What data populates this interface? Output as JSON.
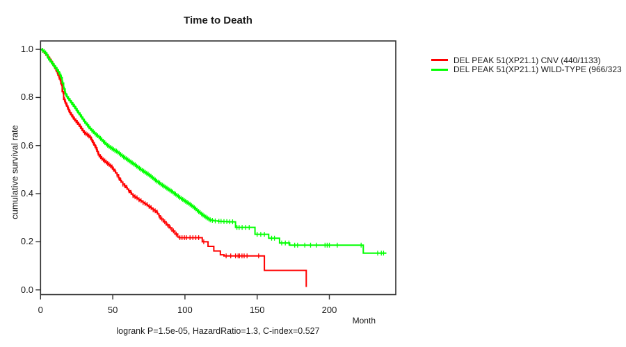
{
  "chart_data": {
    "type": "line",
    "subtype": "kaplan-meier-step-survival",
    "title": "Time to Death",
    "xlabel": "Month",
    "ylabel": "cumulative survival rate",
    "footnote": "logrank P=1.5e-05, HazardRatio=1.3, C-index=0.527",
    "x_ticks": [
      0,
      50,
      100,
      150,
      200
    ],
    "y_ticks": [
      0.0,
      0.2,
      0.4,
      0.6,
      0.8,
      1.0
    ],
    "xlim": [
      0,
      246
    ],
    "ylim": [
      -0.0196,
      1.0349
    ],
    "grid": false,
    "legend_position": "right-outside",
    "series": [
      {
        "name": "DEL PEAK 51(XP21.1) CNV (440/1133)",
        "color": "#ff0000",
        "points": [
          [
            0,
            1.0
          ],
          [
            1,
            0.996
          ],
          [
            2,
            0.99
          ],
          [
            3,
            0.983
          ],
          [
            4,
            0.976
          ],
          [
            5,
            0.968
          ],
          [
            6,
            0.959
          ],
          [
            7,
            0.95
          ],
          [
            8,
            0.941
          ],
          [
            9,
            0.931
          ],
          [
            10,
            0.92
          ],
          [
            11,
            0.907
          ],
          [
            12,
            0.893
          ],
          [
            13,
            0.877
          ],
          [
            14,
            0.857
          ],
          [
            15,
            0.824
          ],
          [
            16,
            0.792
          ],
          [
            17,
            0.777
          ],
          [
            18,
            0.764
          ],
          [
            19,
            0.75
          ],
          [
            20,
            0.737
          ],
          [
            21,
            0.728
          ],
          [
            22,
            0.719
          ],
          [
            23,
            0.71
          ],
          [
            24,
            0.703
          ],
          [
            25,
            0.696
          ],
          [
            26,
            0.689
          ],
          [
            27,
            0.68
          ],
          [
            28,
            0.671
          ],
          [
            29,
            0.662
          ],
          [
            30,
            0.654
          ],
          [
            31,
            0.649
          ],
          [
            32,
            0.645
          ],
          [
            33,
            0.64
          ],
          [
            34,
            0.635
          ],
          [
            35,
            0.624
          ],
          [
            36,
            0.613
          ],
          [
            37,
            0.602
          ],
          [
            38,
            0.591
          ],
          [
            39,
            0.576
          ],
          [
            40,
            0.561
          ],
          [
            41,
            0.554
          ],
          [
            42,
            0.547
          ],
          [
            43,
            0.541
          ],
          [
            44,
            0.536
          ],
          [
            45,
            0.531
          ],
          [
            46,
            0.526
          ],
          [
            47,
            0.521
          ],
          [
            48,
            0.516
          ],
          [
            49,
            0.511
          ],
          [
            50,
            0.502
          ],
          [
            51,
            0.494
          ],
          [
            52,
            0.486
          ],
          [
            53,
            0.478
          ],
          [
            54,
            0.466
          ],
          [
            55,
            0.455
          ],
          [
            56,
            0.448
          ],
          [
            57,
            0.44
          ],
          [
            58,
            0.433
          ],
          [
            59,
            0.426
          ],
          [
            60,
            0.419
          ],
          [
            61,
            0.412
          ],
          [
            62,
            0.405
          ],
          [
            63,
            0.398
          ],
          [
            64,
            0.392
          ],
          [
            65,
            0.387
          ],
          [
            66,
            0.383
          ],
          [
            67,
            0.379
          ],
          [
            68,
            0.375
          ],
          [
            69,
            0.371
          ],
          [
            70,
            0.367
          ],
          [
            71,
            0.363
          ],
          [
            72,
            0.359
          ],
          [
            73,
            0.355
          ],
          [
            74,
            0.351
          ],
          [
            75,
            0.347
          ],
          [
            76,
            0.342
          ],
          [
            77,
            0.338
          ],
          [
            78,
            0.333
          ],
          [
            79,
            0.329
          ],
          [
            80,
            0.323
          ],
          [
            81,
            0.316
          ],
          [
            82,
            0.308
          ],
          [
            83,
            0.295
          ],
          [
            85,
            0.283
          ],
          [
            87,
            0.27
          ],
          [
            89,
            0.258
          ],
          [
            91,
            0.245
          ],
          [
            93,
            0.232
          ],
          [
            95,
            0.22
          ],
          [
            96,
            0.217
          ],
          [
            112,
            0.2
          ],
          [
            116,
            0.181
          ],
          [
            120,
            0.162
          ],
          [
            124.5,
            0.146
          ],
          [
            127,
            0.141
          ],
          [
            155,
            0.081
          ],
          [
            184,
            0.012
          ]
        ],
        "censor_times": [
          1.5,
          2.5,
          3.5,
          4.5,
          5.5,
          6.5,
          7.5,
          8.5,
          9.5,
          10.5,
          11.5,
          12.5,
          13.5,
          14.5,
          15.5,
          16.5,
          17.5,
          18.5,
          19.5,
          20.5,
          21.5,
          22.5,
          23.5,
          24.5,
          25.5,
          26.5,
          27.5,
          28.5,
          29.5,
          30.5,
          31.5,
          32.5,
          33.5,
          34.5,
          35.5,
          36.5,
          37.5,
          38.5,
          39.5,
          40.5,
          41.5,
          42.5,
          43.5,
          44.5,
          45.5,
          46.5,
          47.5,
          48.5,
          49.5,
          50.5,
          51.7,
          53,
          54.3,
          55.6,
          57,
          58.4,
          59.8,
          61.2,
          62.6,
          64,
          65.4,
          66.8,
          68.2,
          69.6,
          71,
          72.4,
          73.8,
          75.2,
          76.6,
          78,
          79.4,
          80.8,
          82.2,
          84,
          86,
          88,
          90,
          92,
          94,
          96.5,
          98,
          99.6,
          101,
          103.5,
          105.5,
          107.5,
          109.5,
          113,
          128.5,
          131.7,
          135,
          136.8,
          137.8,
          139.5,
          141,
          143,
          151
        ]
      },
      {
        "name": "DEL PEAK 51(XP21.1) WILD-TYPE (966/323",
        "color": "#00ff00",
        "points": [
          [
            0,
            1.0
          ],
          [
            1,
            0.996
          ],
          [
            2,
            0.991
          ],
          [
            3,
            0.985
          ],
          [
            4,
            0.978
          ],
          [
            5,
            0.964
          ],
          [
            6,
            0.956
          ],
          [
            7,
            0.948
          ],
          [
            8,
            0.94
          ],
          [
            9,
            0.932
          ],
          [
            10,
            0.924
          ],
          [
            11,
            0.916
          ],
          [
            12,
            0.907
          ],
          [
            13,
            0.896
          ],
          [
            14,
            0.883
          ],
          [
            15,
            0.86
          ],
          [
            16,
            0.835
          ],
          [
            17,
            0.815
          ],
          [
            18,
            0.803
          ],
          [
            19,
            0.795
          ],
          [
            20,
            0.787
          ],
          [
            21,
            0.779
          ],
          [
            22,
            0.771
          ],
          [
            23,
            0.763
          ],
          [
            24,
            0.754
          ],
          [
            25,
            0.745
          ],
          [
            26,
            0.736
          ],
          [
            27,
            0.728
          ],
          [
            28,
            0.719
          ],
          [
            29,
            0.71
          ],
          [
            30,
            0.701
          ],
          [
            31,
            0.693
          ],
          [
            32,
            0.686
          ],
          [
            33,
            0.678
          ],
          [
            34,
            0.671
          ],
          [
            35,
            0.664
          ],
          [
            36,
            0.658
          ],
          [
            37,
            0.652
          ],
          [
            38,
            0.646
          ],
          [
            39,
            0.641
          ],
          [
            40,
            0.636
          ],
          [
            41,
            0.63
          ],
          [
            42,
            0.624
          ],
          [
            43,
            0.618
          ],
          [
            44,
            0.612
          ],
          [
            45,
            0.606
          ],
          [
            46,
            0.601
          ],
          [
            47,
            0.596
          ],
          [
            48,
            0.592
          ],
          [
            49,
            0.588
          ],
          [
            50,
            0.584
          ],
          [
            51,
            0.58
          ],
          [
            52,
            0.577
          ],
          [
            53,
            0.573
          ],
          [
            54,
            0.568
          ],
          [
            55,
            0.563
          ],
          [
            56,
            0.558
          ],
          [
            57,
            0.553
          ],
          [
            58,
            0.549
          ],
          [
            59,
            0.545
          ],
          [
            60,
            0.541
          ],
          [
            61,
            0.536
          ],
          [
            62,
            0.532
          ],
          [
            63,
            0.528
          ],
          [
            64,
            0.524
          ],
          [
            65,
            0.52
          ],
          [
            66,
            0.515
          ],
          [
            67,
            0.51
          ],
          [
            68,
            0.506
          ],
          [
            69,
            0.501
          ],
          [
            70,
            0.497
          ],
          [
            71,
            0.493
          ],
          [
            72,
            0.489
          ],
          [
            73,
            0.485
          ],
          [
            74,
            0.481
          ],
          [
            75,
            0.477
          ],
          [
            76,
            0.472
          ],
          [
            77,
            0.467
          ],
          [
            78,
            0.462
          ],
          [
            79,
            0.457
          ],
          [
            80,
            0.452
          ],
          [
            81,
            0.448
          ],
          [
            82,
            0.444
          ],
          [
            83,
            0.439
          ],
          [
            84,
            0.435
          ],
          [
            85,
            0.431
          ],
          [
            86,
            0.427
          ],
          [
            87,
            0.423
          ],
          [
            88,
            0.419
          ],
          [
            89,
            0.415
          ],
          [
            90,
            0.411
          ],
          [
            91,
            0.407
          ],
          [
            92,
            0.402
          ],
          [
            93,
            0.398
          ],
          [
            94,
            0.393
          ],
          [
            95,
            0.389
          ],
          [
            96,
            0.384
          ],
          [
            97,
            0.38
          ],
          [
            98,
            0.376
          ],
          [
            99,
            0.372
          ],
          [
            100,
            0.368
          ],
          [
            101,
            0.364
          ],
          [
            102,
            0.36
          ],
          [
            103,
            0.356
          ],
          [
            104,
            0.351
          ],
          [
            105,
            0.347
          ],
          [
            106,
            0.342
          ],
          [
            107,
            0.337
          ],
          [
            108,
            0.331
          ],
          [
            109,
            0.326
          ],
          [
            110,
            0.321
          ],
          [
            111,
            0.316
          ],
          [
            112,
            0.311
          ],
          [
            113,
            0.307
          ],
          [
            114,
            0.303
          ],
          [
            115,
            0.299
          ],
          [
            116,
            0.295
          ],
          [
            117,
            0.291
          ],
          [
            118,
            0.289
          ],
          [
            120,
            0.287
          ],
          [
            123,
            0.285
          ],
          [
            126,
            0.284
          ],
          [
            130,
            0.283
          ],
          [
            135,
            0.26
          ],
          [
            148.5,
            0.231
          ],
          [
            158,
            0.215
          ],
          [
            165.5,
            0.195
          ],
          [
            172.5,
            0.186
          ],
          [
            223.5,
            0.153
          ],
          [
            239.5,
            0.153
          ]
        ],
        "censor_times": [
          1.5,
          2.5,
          3.5,
          4.5,
          5.5,
          6.5,
          7.5,
          8.5,
          9.5,
          10.5,
          11.5,
          12.5,
          13.5,
          14.5,
          15.5,
          16.5,
          17.5,
          18.5,
          19.5,
          20.5,
          21.5,
          22.5,
          23.5,
          24.5,
          25.5,
          26.5,
          27.5,
          28.5,
          29.5,
          30.5,
          31.5,
          32.5,
          33.5,
          34.5,
          35.5,
          36.5,
          37.5,
          38.5,
          39.5,
          40.5,
          41.5,
          42.5,
          43.5,
          44.5,
          45.5,
          46.5,
          47.5,
          48.5,
          49.5,
          50.5,
          51.5,
          52.5,
          53.5,
          54.5,
          55.5,
          56.5,
          57.5,
          58.5,
          59.5,
          60.5,
          61.5,
          62.5,
          63.5,
          64.5,
          65.5,
          66.5,
          67.5,
          68.5,
          69.5,
          70.5,
          71.5,
          72.5,
          73.5,
          74.5,
          75.5,
          76.5,
          77.5,
          78.5,
          79.5,
          80.5,
          81.5,
          82.5,
          83.5,
          84.5,
          85.5,
          86.5,
          87.5,
          88.5,
          89.5,
          90.5,
          91.5,
          92.5,
          93.5,
          94.5,
          95.5,
          96.5,
          97.5,
          98.5,
          99.5,
          100.5,
          101.5,
          102.5,
          103.5,
          104.5,
          105.5,
          106.5,
          107.5,
          108.5,
          109.5,
          110.5,
          111.5,
          112.5,
          113.5,
          114.5,
          115.5,
          116.5,
          117.5,
          119,
          121,
          123.5,
          125,
          127,
          129,
          131,
          133,
          136,
          137.5,
          139.6,
          142,
          144.5,
          150,
          152.5,
          155,
          160,
          162,
          167,
          169.5,
          172,
          176,
          178,
          183,
          187,
          191,
          197,
          198.5,
          200,
          205.5,
          222,
          233.5,
          236,
          237.5
        ]
      }
    ]
  }
}
